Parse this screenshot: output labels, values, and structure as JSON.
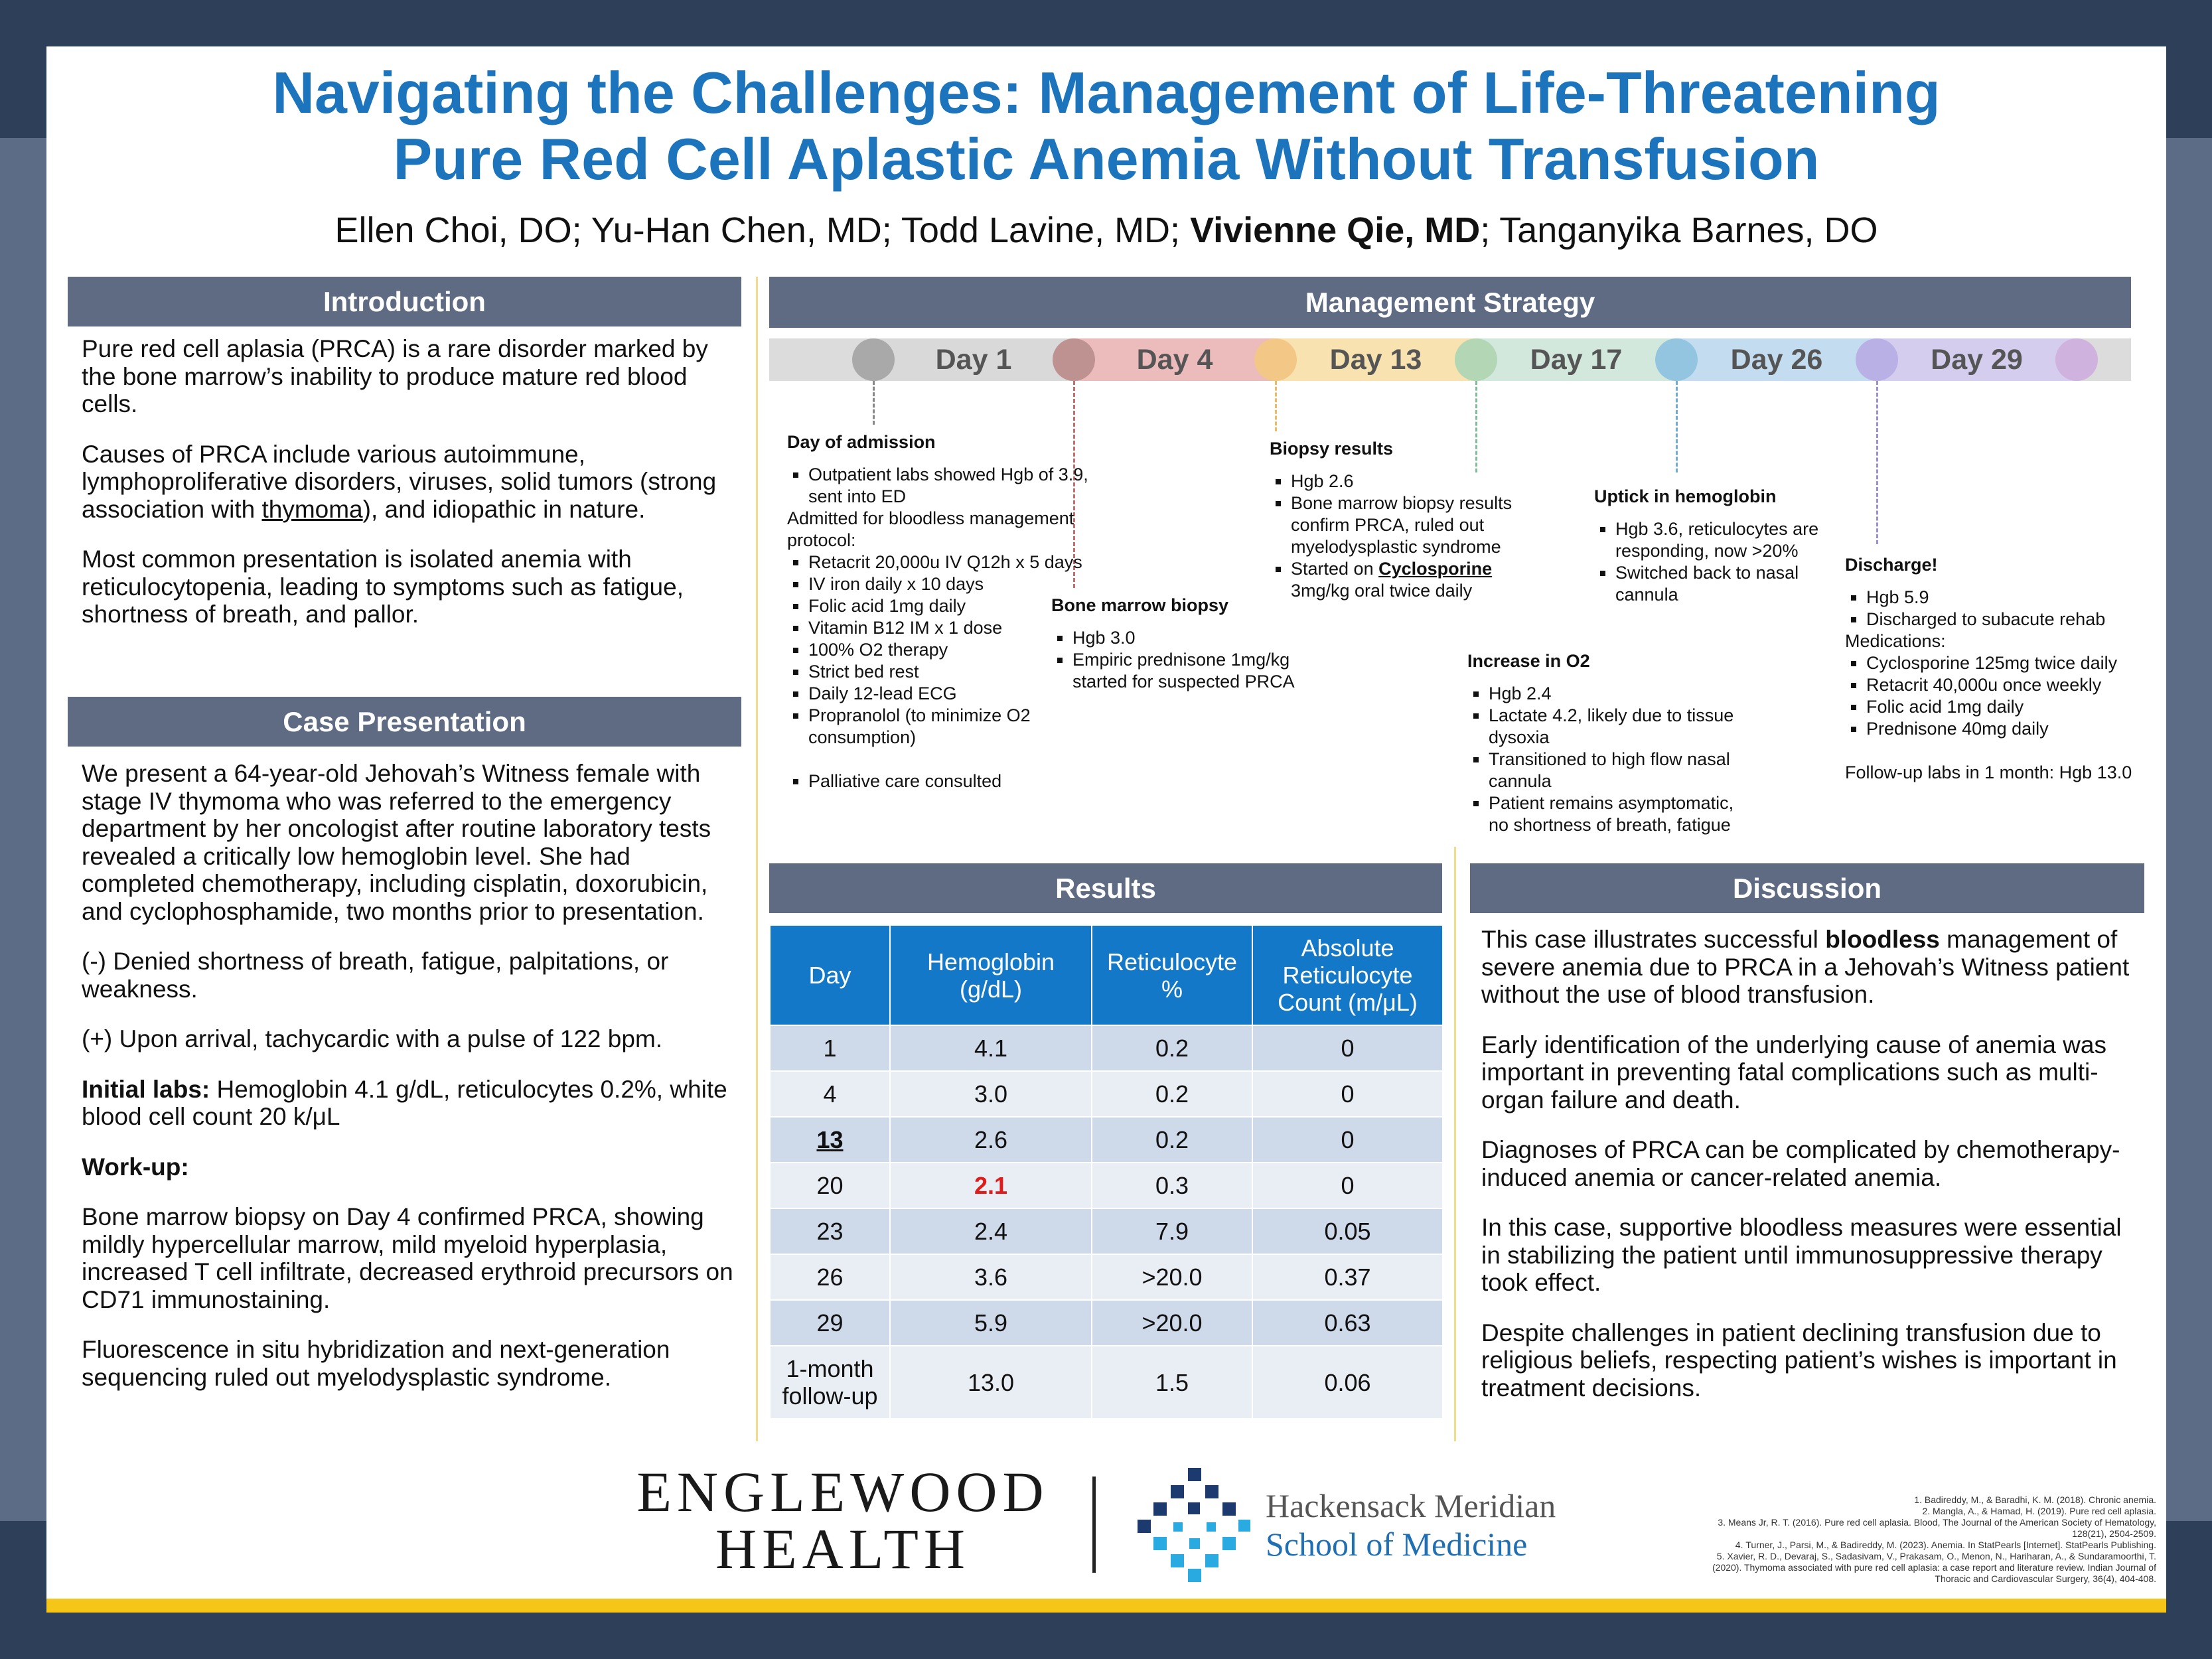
{
  "header": {
    "title": [
      "Navigating the Challenges: Management of Life-Threatening",
      "Pure Red Cell Aplastic Anemia Without Transfusion"
    ],
    "authors": [
      "Ellen Choi, DO; Yu-Han Chen, MD; Todd Lavine, MD; ",
      "Vivienne Qie, MD",
      "; Tanganyika Barnes, DO"
    ]
  },
  "introduction": {
    "heading": "Introduction",
    "paragraphs": [
      [
        "Pure red cell aplasia (PRCA) is a rare disorder marked by the bone marrow’s inability to produce mature red blood cells."
      ],
      [
        "Causes of PRCA include various autoimmune, lymphoproliferative disorders, viruses, solid tumors (strong association with ",
        "thymoma",
        "), and idiopathic in nature."
      ],
      [
        "Most common presentation is isolated anemia with reticulocytopenia, leading to symptoms such as fatigue, shortness of breath, and pallor."
      ]
    ]
  },
  "case_presentation": {
    "heading": "Case Presentation",
    "paragraphs": [
      [
        "We present a 64-year-old Jehovah’s Witness female with stage IV thymoma who was referred to the emergency department by her oncologist after routine laboratory tests revealed a critically low hemoglobin level. She had completed chemotherapy, including cisplatin, doxorubicin, and cyclophosphamide, two months prior to presentation."
      ],
      [
        "(-) Denied shortness of breath, fatigue, palpitations, or weakness."
      ],
      [
        "(+) Upon arrival, tachycardic with a pulse of 122 bpm."
      ],
      [
        "Initial labs:",
        " Hemoglobin 4.1 g/dL, reticulocytes 0.2%, white blood cell count 20 k/μL"
      ],
      [
        "Work-up:"
      ],
      [
        "Bone marrow biopsy on Day 4 confirmed PRCA, showing mildly hypercellular marrow, mild myeloid hyperplasia, increased T cell infiltrate, decreased erythroid precursors on CD71 immunostaining."
      ],
      [
        "Fluorescence in situ hybridization and next-generation sequencing ruled out myelodysplastic syndrome."
      ]
    ]
  },
  "management": {
    "heading": "Management Strategy",
    "days": [
      "Day 1",
      "Day 4",
      "Day 13",
      "Day 17",
      "Day 26",
      "Day 29"
    ],
    "events": [
      {
        "title": "Day of admission",
        "items_1": [
          "Outpatient labs showed Hgb of 3.9, sent into ED"
        ],
        "note": "Admitted for bloodless management protocol:",
        "items_2": [
          "Retacrit 20,000u IV Q12h x 5 days",
          "IV iron daily x 10 days",
          "Folic acid 1mg daily",
          "Vitamin B12 IM x 1 dose",
          "100% O2 therapy",
          "Strict bed rest",
          "Daily 12-lead ECG",
          "Propranolol (to minimize O2 consumption)"
        ],
        "items_3": [
          "Palliative care consulted"
        ]
      },
      {
        "title": "Bone marrow biopsy",
        "items": [
          "Hgb 3.0",
          "Empiric prednisone 1mg/kg started for suspected PRCA"
        ]
      },
      {
        "title": "Biopsy results",
        "items": [
          "Hgb 2.6",
          "Bone marrow biopsy results confirm PRCA, ruled out myelodysplastic syndrome",
          [
            "Started on ",
            "Cyclosporine",
            " 3mg/kg oral twice daily"
          ]
        ]
      },
      {
        "title": "Increase in O2",
        "items": [
          "Hgb 2.4",
          "Lactate 4.2, likely due to tissue dysoxia",
          "Transitioned to high flow nasal cannula",
          "Patient remains asymptomatic, no shortness of breath, fatigue"
        ]
      },
      {
        "title": "Uptick in hemoglobin",
        "items": [
          "Hgb 3.6, reticulocytes are responding, now >20%",
          "Switched back to nasal cannula"
        ]
      },
      {
        "title": "Discharge!",
        "items_1": [
          "Hgb 5.9",
          "Discharged to subacute rehab"
        ],
        "note": "Medications:",
        "items_2": [
          "Cyclosporine 125mg twice daily",
          "Retacrit 40,000u once weekly",
          "Folic acid 1mg daily",
          "Prednisone 40mg daily"
        ],
        "follow_up": "Follow-up labs in 1 month: Hgb 13.0"
      }
    ]
  },
  "results": {
    "heading": "Results",
    "columns": [
      "Day",
      "Hemoglobin (g/dL)",
      "Reticulocyte %",
      "Absolute Reticulocyte Count (m/μL)"
    ],
    "rows": [
      [
        "1",
        "4.1",
        "0.2",
        "0"
      ],
      [
        "4",
        "3.0",
        "0.2",
        "0"
      ],
      [
        "13",
        "2.6",
        "0.2",
        "0"
      ],
      [
        "20",
        "2.1",
        "0.3",
        "0"
      ],
      [
        "23",
        "2.4",
        "7.9",
        "0.05"
      ],
      [
        "26",
        "3.6",
        ">20.0",
        "0.37"
      ],
      [
        "29",
        "5.9",
        ">20.0",
        "0.63"
      ],
      [
        "1-month follow-up",
        "13.0",
        "1.5",
        "0.06"
      ]
    ]
  },
  "discussion": {
    "heading": "Discussion",
    "paragraphs": [
      [
        "This case illustrates successful ",
        "bloodless",
        " management of severe anemia due to PRCA in a Jehovah’s Witness patient without the use of blood transfusion."
      ],
      [
        "Early identification of the underlying cause of anemia was important in preventing fatal complications such as multi-organ failure and death."
      ],
      [
        "Diagnoses of PRCA can be complicated by chemotherapy-induced anemia or cancer-related anemia."
      ],
      [
        "In this case, supportive bloodless measures were essential in stabilizing the patient until immunosuppressive therapy took effect."
      ],
      [
        "Despite challenges in patient declining transfusion due to religious beliefs, respecting patient’s wishes is important in treatment decisions."
      ]
    ]
  },
  "footer": {
    "logo_1": [
      "ENGLEWOOD",
      "HEALTH"
    ],
    "logo_2": [
      "Hackensack Meridian",
      "School of Medicine"
    ],
    "references": [
      "Badireddy, M., & Baradhi, K. M. (2018). Chronic anemia.",
      "Mangla, A., & Hamad, H. (2019). Pure red cell aplasia.",
      "Means Jr, R. T. (2016). Pure red cell aplasia. Blood, The Journal of the American Society of Hematology, 128(21), 2504-2509.",
      "Turner, J., Parsi, M., & Badireddy, M. (2023). Anemia. In StatPearls [Internet]. StatPearls Publishing.",
      "Xavier, R. D., Devaraj, S., Sadasivam, V., Prakasam, O., Menon, N., Hariharan, A., & Sundaramoorthi, T. (2020). Thymoma associated with pure red cell aplasia: a case report and literature review. Indian Journal of Thoracic and Cardiovascular Surgery, 36(4), 404-408."
    ]
  }
}
